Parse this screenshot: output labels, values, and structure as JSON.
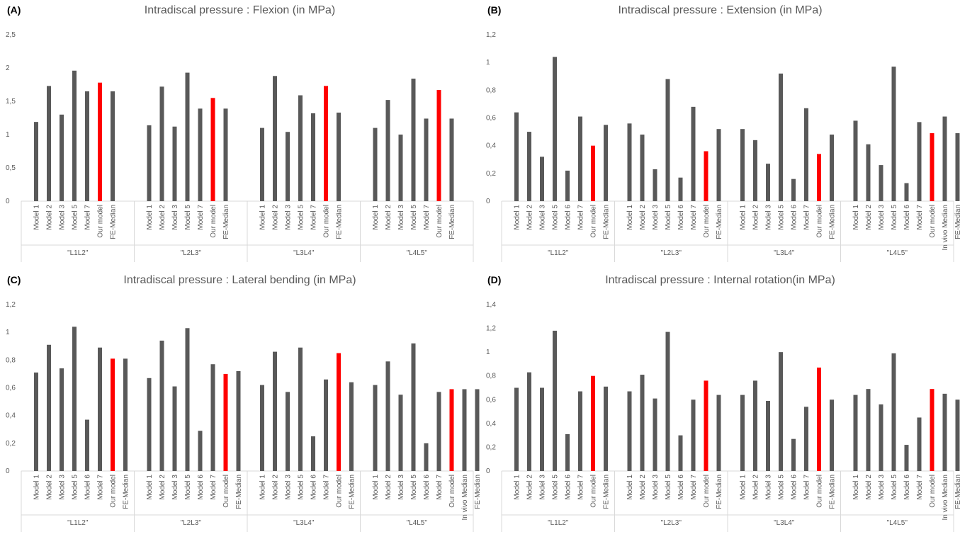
{
  "colors": {
    "bar": "#595959",
    "highlight": "#ff0000",
    "grid": "#d9d9d9",
    "axis_text": "#595959"
  },
  "chart_data": [
    {
      "id": "A",
      "label": "(A)",
      "type": "bar",
      "title": "Intradiscal pressure : Flexion (in MPa)",
      "ylim": [
        0,
        2.5
      ],
      "yticks": [
        "0",
        "0,5",
        "1",
        "1,5",
        "2",
        "2,5"
      ],
      "grid": false,
      "highlight_category": "Our model",
      "groups": [
        {
          "name": "\"L1L2\"",
          "categories": [
            "Model 1",
            "Model 2",
            "Model 3",
            "Model 5",
            "Model 7",
            "Our model",
            "FE-Median"
          ],
          "values": [
            1.19,
            1.73,
            1.3,
            1.96,
            1.65,
            1.78,
            1.65
          ]
        },
        {
          "name": "\"L2L3\"",
          "categories": [
            "Model 1",
            "Model 2",
            "Model 3",
            "Model 5",
            "Model 7",
            "Our model",
            "FE-Median"
          ],
          "values": [
            1.14,
            1.72,
            1.12,
            1.93,
            1.39,
            1.55,
            1.39
          ]
        },
        {
          "name": "\"L3L4\"",
          "categories": [
            "Model 1",
            "Model 2",
            "Model 3",
            "Model 5",
            "Model 7",
            "Our model",
            "FE-Median"
          ],
          "values": [
            1.1,
            1.88,
            1.04,
            1.59,
            1.32,
            1.73,
            1.33
          ]
        },
        {
          "name": "\"L4L5\"",
          "categories": [
            "Model 1",
            "Model 2",
            "Model 3",
            "Model 5",
            "Model 7",
            "Our model",
            "FE-Median"
          ],
          "values": [
            1.1,
            1.52,
            1.0,
            1.84,
            1.24,
            1.67,
            1.24
          ]
        }
      ]
    },
    {
      "id": "B",
      "label": "(B)",
      "type": "bar",
      "title": "Intradiscal pressure : Extension (in MPa)",
      "ylim": [
        0,
        1.2
      ],
      "yticks": [
        "0",
        "0,2",
        "0,4",
        "0,6",
        "0,8",
        "1",
        "1,2"
      ],
      "grid": false,
      "highlight_category": "Our model",
      "groups": [
        {
          "name": "\"L1L2\"",
          "categories": [
            "Model 1",
            "Model 2",
            "Model 3",
            "Model 5",
            "Model 6",
            "Model 7",
            "Our model",
            "FE-Median"
          ],
          "values": [
            0.64,
            0.5,
            0.32,
            1.04,
            0.22,
            0.61,
            0.4,
            0.55
          ]
        },
        {
          "name": "\"L2L3\"",
          "categories": [
            "Model 1",
            "Model 2",
            "Model 3",
            "Model 5",
            "Model 6",
            "Model 7",
            "Our model",
            "FE-Median"
          ],
          "values": [
            0.56,
            0.48,
            0.23,
            0.88,
            0.17,
            0.68,
            0.36,
            0.52
          ]
        },
        {
          "name": "\"L3L4\"",
          "categories": [
            "Model 1",
            "Model 2",
            "Model 3",
            "Model 5",
            "Model 6",
            "Model 7",
            "Our model",
            "FE-Median"
          ],
          "values": [
            0.52,
            0.44,
            0.27,
            0.92,
            0.16,
            0.67,
            0.34,
            0.48
          ]
        },
        {
          "name": "\"L4L5\"",
          "categories": [
            "Model 1",
            "Model 2",
            "Model 3",
            "Model 5",
            "Model 6",
            "Model 7",
            "Our model",
            "In vivo Median",
            "FE-Median"
          ],
          "values": [
            0.58,
            0.41,
            0.26,
            0.97,
            0.13,
            0.57,
            0.49,
            0.61,
            0.49
          ]
        }
      ]
    },
    {
      "id": "C",
      "label": "(C)",
      "type": "bar",
      "title": "Intradiscal pressure : Lateral bending (in MPa)",
      "ylim": [
        0,
        1.2
      ],
      "yticks": [
        "0",
        "0,2",
        "0,4",
        "0,6",
        "0,8",
        "1",
        "1,2"
      ],
      "grid": false,
      "highlight_category": "Our model",
      "groups": [
        {
          "name": "\"L1L2\"",
          "categories": [
            "Model 1",
            "Model 2",
            "Model 3",
            "Model 5",
            "Model 6",
            "Model 7",
            "Our model",
            "FE-Median"
          ],
          "values": [
            0.71,
            0.91,
            0.74,
            1.04,
            0.37,
            0.89,
            0.81,
            0.81
          ]
        },
        {
          "name": "\"L2L3\"",
          "categories": [
            "Model 1",
            "Model 2",
            "Model 3",
            "Model 5",
            "Model 6",
            "Model 7",
            "Our model",
            "FE-Median"
          ],
          "values": [
            0.67,
            0.94,
            0.61,
            1.03,
            0.29,
            0.77,
            0.7,
            0.72
          ]
        },
        {
          "name": "\"L3L4\"",
          "categories": [
            "Model 1",
            "Model 2",
            "Model 3",
            "Model 5",
            "Model 6",
            "Model 7",
            "Our model",
            "FE-Median"
          ],
          "values": [
            0.62,
            0.86,
            0.57,
            0.89,
            0.25,
            0.66,
            0.85,
            0.64
          ]
        },
        {
          "name": "\"L4L5\"",
          "categories": [
            "Model 1",
            "Model 2",
            "Model 3",
            "Model 5",
            "Model 6",
            "Model 7",
            "Our model",
            "In vivo Median",
            "FE-Median"
          ],
          "values": [
            0.62,
            0.79,
            0.55,
            0.92,
            0.2,
            0.57,
            0.59,
            0.59,
            0.59
          ]
        }
      ]
    },
    {
      "id": "D",
      "label": "(D)",
      "type": "bar",
      "title": "Intradiscal pressure : Internal rotation(in MPa)",
      "ylim": [
        0,
        1.4
      ],
      "yticks": [
        "0",
        "0,2",
        "0,4",
        "0,6",
        "0,8",
        "1",
        "1,2",
        "1,4"
      ],
      "grid": false,
      "highlight_category": "Our model",
      "groups": [
        {
          "name": "\"L1L2\"",
          "categories": [
            "Model 1",
            "Model 2",
            "Model 3",
            "Model 5",
            "Model 6",
            "Model 7",
            "Our model",
            "FE-Median"
          ],
          "values": [
            0.7,
            0.83,
            0.7,
            1.18,
            0.31,
            0.67,
            0.8,
            0.71
          ]
        },
        {
          "name": "\"L2L3\"",
          "categories": [
            "Model 1",
            "Model 2",
            "Model 3",
            "Model 5",
            "Model 6",
            "Model 7",
            "Our model",
            "FE-Median"
          ],
          "values": [
            0.67,
            0.81,
            0.61,
            1.17,
            0.3,
            0.6,
            0.76,
            0.64
          ]
        },
        {
          "name": "\"L3L4\"",
          "categories": [
            "Model 1",
            "Model 2",
            "Model 3",
            "Model 5",
            "Model 6",
            "Model 7",
            "Our model",
            "FE-Median"
          ],
          "values": [
            0.64,
            0.76,
            0.59,
            1.0,
            0.27,
            0.54,
            0.87,
            0.6
          ]
        },
        {
          "name": "\"L4L5\"",
          "categories": [
            "Model 1",
            "Model 2",
            "Model 3",
            "Model 5",
            "Model 6",
            "Model 7",
            "Our model",
            "In vivo Median",
            "FE-Median"
          ],
          "values": [
            0.64,
            0.69,
            0.56,
            0.99,
            0.22,
            0.45,
            0.69,
            0.65,
            0.6
          ]
        }
      ]
    }
  ]
}
